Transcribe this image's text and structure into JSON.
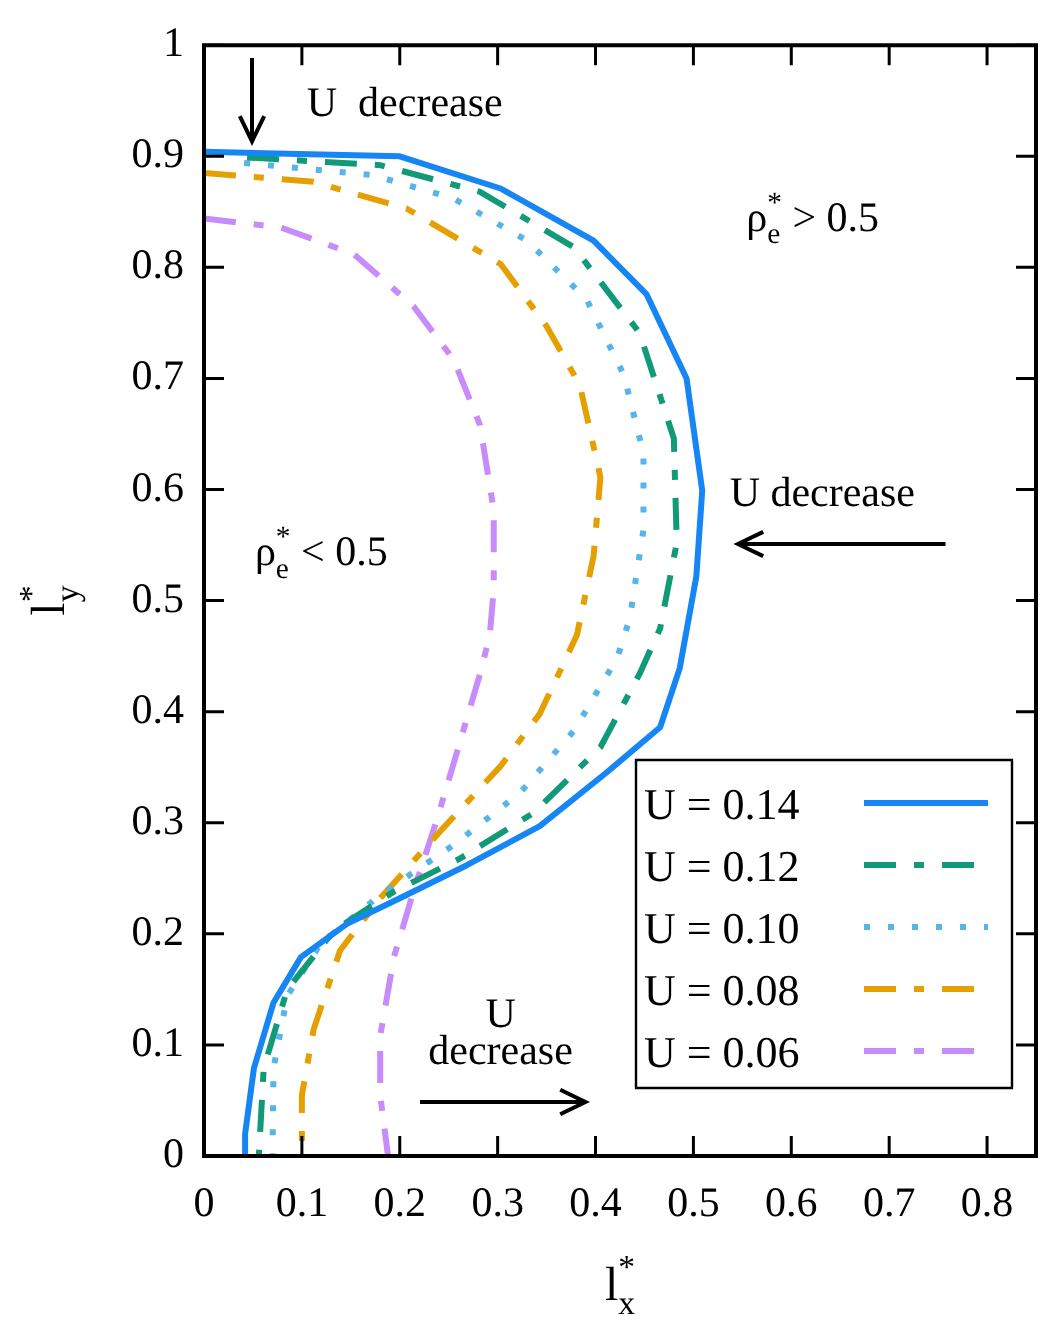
{
  "chart_data": {
    "type": "line",
    "xlabel": "l$_{x}$$^{*}$",
    "ylabel": "l$_{y}$$^{*}$",
    "xlim": [
      0,
      0.85
    ],
    "ylim": [
      0,
      1
    ],
    "xticks": [
      0,
      0.1,
      0.2,
      0.3,
      0.4,
      0.5,
      0.6,
      0.7,
      0.8
    ],
    "yticks": [
      0,
      0.1,
      0.2,
      0.3,
      0.4,
      0.5,
      0.6,
      0.7,
      0.8,
      0.9,
      1
    ],
    "legend": "bottom right",
    "annotations": [
      "U  decrease",
      "ρ$_{e}$$^{*}$ > 0.5",
      "U decrease",
      "ρ$_{e}$$^{*}$ < 0.5",
      "U decrease"
    ],
    "series": [
      {
        "name": "U = 0.14",
        "color": "#1686f5",
        "line_style": "solid",
        "x": [
          0,
          0.2,
          0.303,
          0.398,
          0.452,
          0.493,
          0.509,
          0.503,
          0.486,
          0.466,
          0.411,
          0.343,
          0.269,
          0.2,
          0.146,
          0.099,
          0.071,
          0.051,
          0.042,
          0.042
        ],
        "values": [
          0.904,
          0.9,
          0.871,
          0.824,
          0.776,
          0.7,
          0.599,
          0.522,
          0.439,
          0.386,
          0.345,
          0.297,
          0.262,
          0.232,
          0.209,
          0.179,
          0.138,
          0.079,
          0.02,
          0
        ]
      },
      {
        "name": "U = 0.12",
        "color": "#109a78",
        "line_style": "dashed",
        "x": [
          0.044,
          0.18,
          0.282,
          0.378,
          0.445,
          0.48,
          0.483,
          0.466,
          0.445,
          0.405,
          0.337,
          0.262,
          0.194,
          0.133,
          0.085,
          0.061,
          0.056
        ],
        "values": [
          0.899,
          0.892,
          0.868,
          0.818,
          0.741,
          0.646,
          0.552,
          0.475,
          0.434,
          0.368,
          0.309,
          0.268,
          0.238,
          0.203,
          0.15,
          0.079,
          0
        ]
      },
      {
        "name": "U = 0.10",
        "color": "#56b4e9",
        "line_style": "dotted",
        "x": [
          0.041,
          0.173,
          0.255,
          0.33,
          0.391,
          0.429,
          0.449,
          0.449,
          0.435,
          0.422,
          0.378,
          0.323,
          0.255,
          0.18,
          0.119,
          0.085,
          0.071,
          0.07
        ],
        "values": [
          0.894,
          0.883,
          0.862,
          0.824,
          0.771,
          0.703,
          0.632,
          0.564,
          0.484,
          0.448,
          0.383,
          0.327,
          0.28,
          0.235,
          0.191,
          0.144,
          0.079,
          0
        ]
      },
      {
        "name": "U = 0.08",
        "color": "#e69f00",
        "line_style": "dashed",
        "x": [
          0,
          0.112,
          0.207,
          0.303,
          0.35,
          0.384,
          0.405,
          0.398,
          0.381,
          0.343,
          0.303,
          0.241,
          0.18,
          0.139,
          0.112,
          0.1,
          0.1
        ],
        "values": [
          0.885,
          0.877,
          0.853,
          0.803,
          0.747,
          0.694,
          0.611,
          0.54,
          0.469,
          0.398,
          0.351,
          0.292,
          0.232,
          0.185,
          0.114,
          0.055,
          0
        ]
      },
      {
        "name": "U = 0.06",
        "color": "#c88cfa",
        "line_style": "dashed",
        "x": [
          0,
          0.078,
          0.153,
          0.214,
          0.255,
          0.282,
          0.296,
          0.296,
          0.292,
          0.282,
          0.262,
          0.238,
          0.214,
          0.194,
          0.18,
          0.18,
          0.188
        ],
        "values": [
          0.844,
          0.836,
          0.812,
          0.765,
          0.717,
          0.658,
          0.581,
          0.51,
          0.469,
          0.434,
          0.374,
          0.303,
          0.238,
          0.179,
          0.108,
          0.055,
          0
        ]
      }
    ]
  }
}
